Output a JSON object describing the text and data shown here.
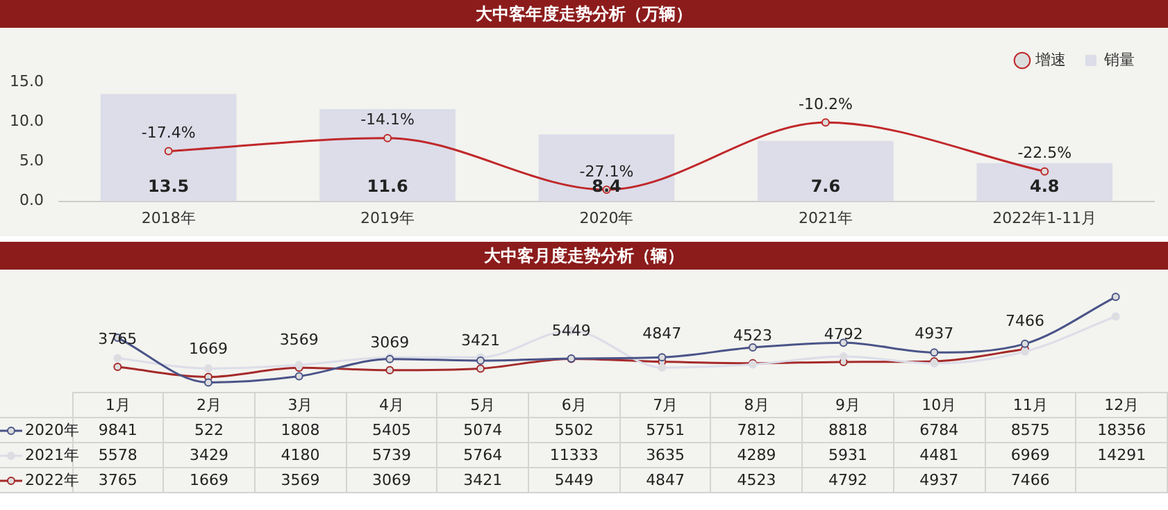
{
  "chart_data": [
    {
      "type": "bar",
      "title": "大中客年度走势分析（万辆）",
      "categories": [
        "2018年",
        "2019年",
        "2020年",
        "2021年",
        "2022年1-11月"
      ],
      "series": [
        {
          "name": "销量",
          "type": "bar",
          "color": "#dcdde9",
          "values": [
            13.5,
            11.6,
            8.4,
            7.6,
            4.8
          ]
        },
        {
          "name": "增速",
          "type": "line",
          "axis": "y2",
          "color": "#c0282a",
          "values": [
            -17.4,
            -14.1,
            -27.1,
            -10.2,
            -22.5
          ],
          "value_labels": [
            "-17.4%",
            "-14.1%",
            "-27.1%",
            "-10.2%",
            "-22.5%"
          ]
        }
      ],
      "ylim": [
        0,
        15
      ],
      "yticks": [
        {
          "value": 0,
          "label": "0.0"
        },
        {
          "value": 5,
          "label": "5.0"
        },
        {
          "value": 10,
          "label": "10.0"
        },
        {
          "value": 15,
          "label": "15.0"
        }
      ],
      "grid": false,
      "legend": "top right",
      "marker": "circle",
      "data_labels": true
    },
    {
      "type": "line",
      "title": "大中客月度走势分析（辆）",
      "categories": [
        "1月",
        "2月",
        "3月",
        "4月",
        "5月",
        "6月",
        "7月",
        "8月",
        "9月",
        "10月",
        "11月",
        "12月"
      ],
      "series": [
        {
          "name": "2020年",
          "color": "#4a5488",
          "values": [
            9841,
            522,
            1808,
            5405,
            5074,
            5502,
            5751,
            7812,
            8818,
            6784,
            8575,
            18356
          ]
        },
        {
          "name": "2021年",
          "color": "#dcdde9",
          "values": [
            5578,
            3429,
            4180,
            5739,
            5764,
            11333,
            3635,
            4289,
            5931,
            4481,
            6969,
            14291
          ]
        },
        {
          "name": "2022年",
          "color": "#a52a2a",
          "values": [
            3765,
            1669,
            3569,
            3069,
            3421,
            5449,
            4847,
            4523,
            4792,
            4937,
            7466,
            null
          ]
        }
      ],
      "annotations": [
        {
          "text": "3765",
          "x": "1月",
          "y": 3765
        },
        {
          "text": "1669",
          "x": "2月",
          "y": 1669
        },
        {
          "text": "3569",
          "x": "3月",
          "y": 3569
        },
        {
          "text": "3069",
          "x": "4月",
          "y": 3069
        },
        {
          "text": "3421",
          "x": "5月",
          "y": 3421
        },
        {
          "text": "5449",
          "x": "6月",
          "y": 5449
        },
        {
          "text": "4847",
          "x": "7月",
          "y": 4847
        },
        {
          "text": "4523",
          "x": "8月",
          "y": 4523
        },
        {
          "text": "4792",
          "x": "9月",
          "y": 4792
        },
        {
          "text": "4937",
          "x": "10月",
          "y": 4937
        },
        {
          "text": "7466",
          "x": "11月",
          "y": 7466
        }
      ],
      "grid": false,
      "legend": "bottom left",
      "marker": "circle",
      "data_labels": true
    }
  ]
}
